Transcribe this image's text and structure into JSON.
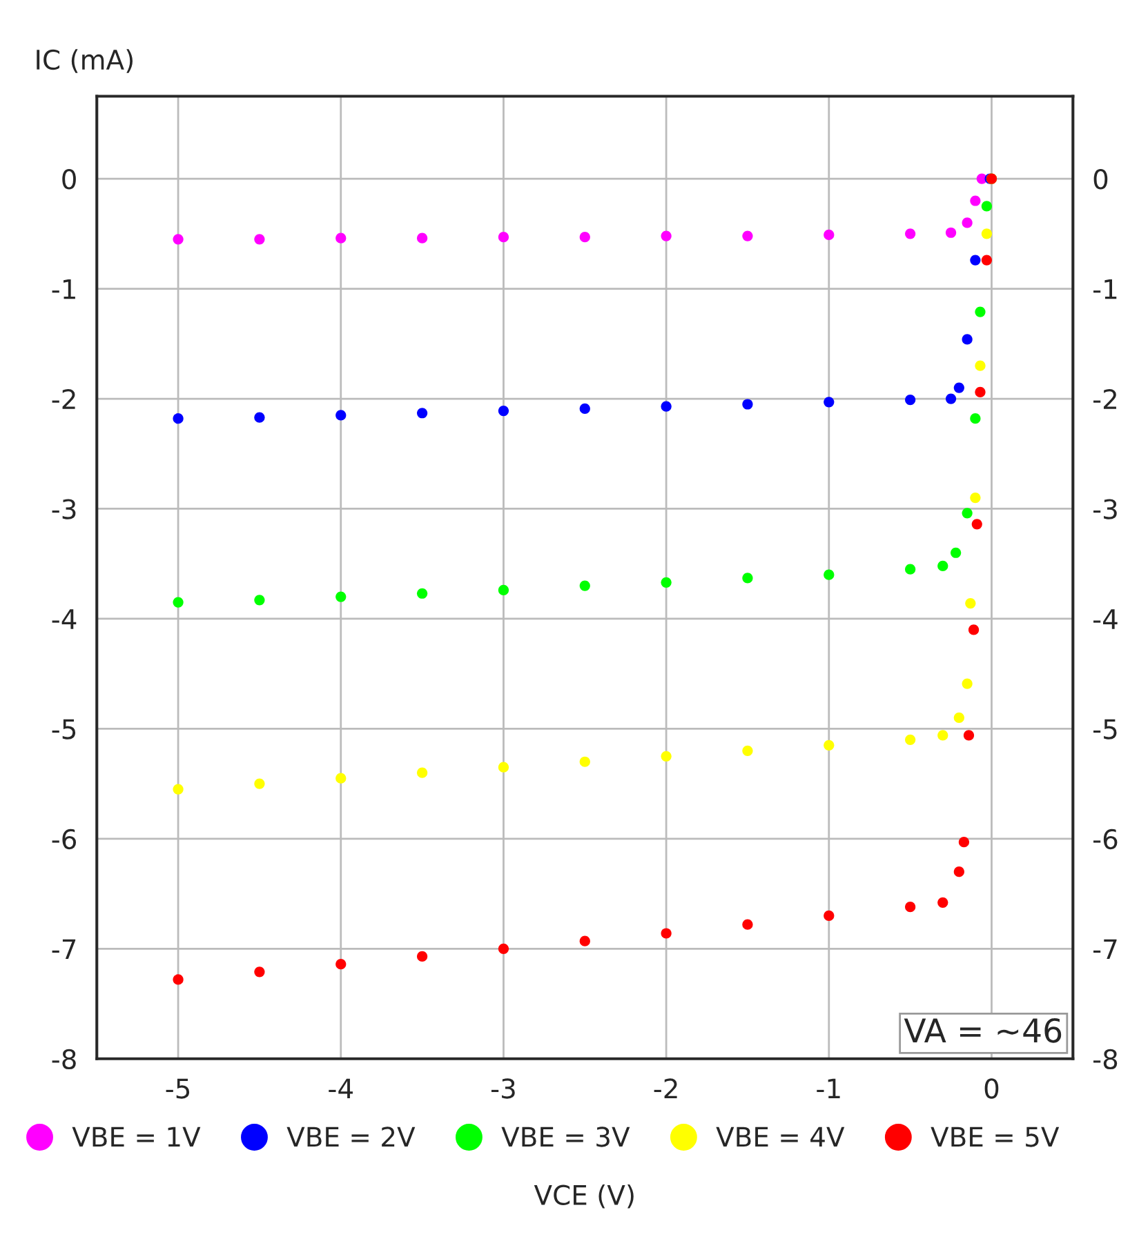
{
  "chart_data": {
    "type": "scatter",
    "xlabel": "VCE (V)",
    "ylabel": "IC (mA)",
    "xlim": [
      -5.5,
      0.5
    ],
    "xticks": [
      -5,
      -4,
      -3,
      -2,
      -1,
      0
    ],
    "ylim": [
      -8,
      0.75
    ],
    "yticks": [
      0,
      -1,
      -2,
      -3,
      -4,
      -5,
      -6,
      -7,
      -8
    ],
    "y2lim": [
      -8,
      0.75
    ],
    "y2ticks": [
      0,
      -1,
      -2,
      -3,
      -4,
      -5,
      -6,
      -7,
      -8
    ],
    "grid": true,
    "legend": "bottom",
    "marker": "circle",
    "annotations": [
      "VA = ~46"
    ],
    "series": [
      {
        "name": "VBE = 1V",
        "color": "#ff00ff",
        "x": [
          -5,
          -4.5,
          -4,
          -3.5,
          -3,
          -2.5,
          -2,
          -1.5,
          -1,
          -0.5,
          -0.25,
          -0.15,
          -0.1,
          -0.06,
          0
        ],
        "values": [
          -0.55,
          -0.55,
          -0.54,
          -0.54,
          -0.53,
          -0.53,
          -0.52,
          -0.52,
          -0.51,
          -0.5,
          -0.49,
          -0.4,
          -0.2,
          0,
          0
        ]
      },
      {
        "name": "VBE = 2V",
        "color": "#0000ff",
        "x": [
          -5,
          -4.5,
          -4,
          -3.5,
          -3,
          -2.5,
          -2,
          -1.5,
          -1,
          -0.5,
          -0.25,
          -0.2,
          -0.15,
          -0.1,
          -0.01
        ],
        "values": [
          -2.18,
          -2.17,
          -2.15,
          -2.13,
          -2.11,
          -2.09,
          -2.07,
          -2.05,
          -2.03,
          -2.01,
          -2.0,
          -1.9,
          -1.46,
          -0.74,
          0
        ]
      },
      {
        "name": "VBE = 3V",
        "color": "#00ff00",
        "x": [
          -5,
          -4.5,
          -4,
          -3.5,
          -3,
          -2.5,
          -2,
          -1.5,
          -1,
          -0.5,
          -0.3,
          -0.22,
          -0.15,
          -0.1,
          -0.07,
          -0.03,
          0
        ],
        "values": [
          -3.85,
          -3.83,
          -3.8,
          -3.77,
          -3.74,
          -3.7,
          -3.67,
          -3.63,
          -3.6,
          -3.55,
          -3.52,
          -3.4,
          -3.04,
          -2.18,
          -1.21,
          -0.25,
          0
        ]
      },
      {
        "name": "VBE = 4V",
        "color": "#ffff00",
        "x": [
          -5,
          -4.5,
          -4,
          -3.5,
          -3,
          -2.5,
          -2,
          -1.5,
          -1,
          -0.5,
          -0.3,
          -0.2,
          -0.15,
          -0.13,
          -0.1,
          -0.07,
          -0.03,
          0
        ],
        "values": [
          -5.55,
          -5.5,
          -5.45,
          -5.4,
          -5.35,
          -5.3,
          -5.25,
          -5.2,
          -5.15,
          -5.1,
          -5.06,
          -4.9,
          -4.59,
          -3.86,
          -2.9,
          -1.7,
          -0.5,
          0
        ]
      },
      {
        "name": "VBE = 5V",
        "color": "#ff0000",
        "x": [
          -5,
          -4.5,
          -4,
          -3.5,
          -3,
          -2.5,
          -2,
          -1.5,
          -1,
          -0.5,
          -0.3,
          -0.2,
          -0.17,
          -0.14,
          -0.11,
          -0.09,
          -0.07,
          -0.03,
          0
        ],
        "values": [
          -7.28,
          -7.21,
          -7.14,
          -7.07,
          -7.0,
          -6.93,
          -6.86,
          -6.78,
          -6.7,
          -6.62,
          -6.58,
          -6.3,
          -6.03,
          -5.06,
          -4.1,
          -3.14,
          -1.94,
          -0.74,
          0
        ]
      }
    ]
  }
}
